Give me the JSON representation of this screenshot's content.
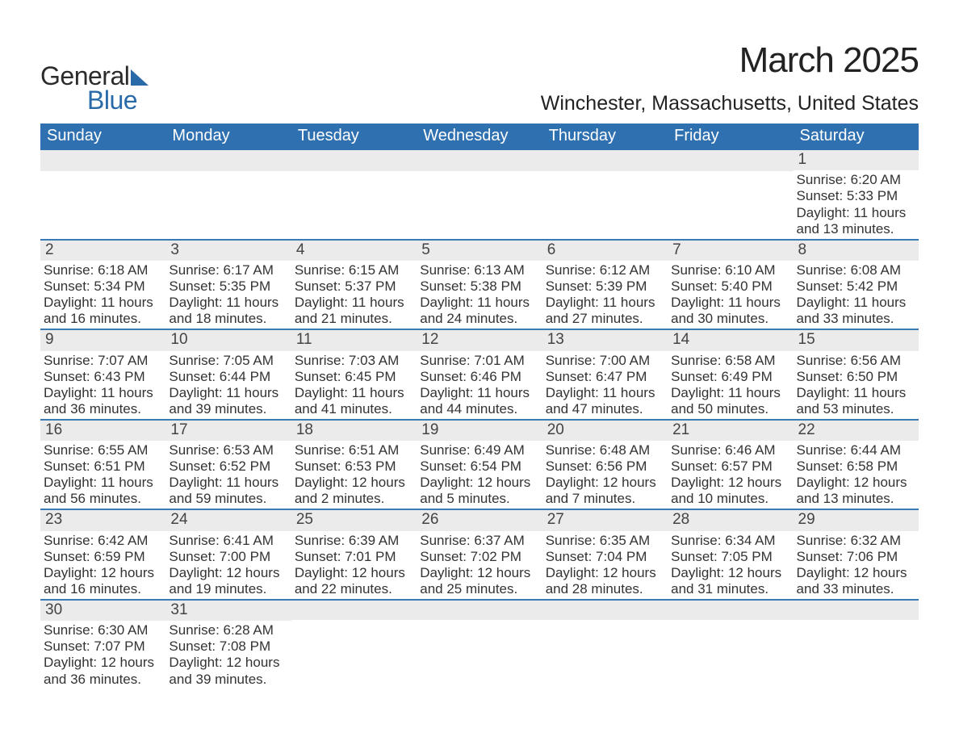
{
  "brand": {
    "line1": "General",
    "line2": "Blue",
    "accent_color": "#2a6aa8"
  },
  "title": "March 2025",
  "location": "Winchester, Massachusetts, United States",
  "colors": {
    "header_bg": "#2f70b0",
    "header_text": "#ffffff",
    "row_divider": "#3a7ab5",
    "daynum_bg": "#ebebeb",
    "body_text": "#333333",
    "page_bg": "#ffffff"
  },
  "typography": {
    "title_fontsize": 44,
    "location_fontsize": 25,
    "weekday_fontsize": 20,
    "daynum_fontsize": 19,
    "body_fontsize": 17
  },
  "weekdays": [
    "Sunday",
    "Monday",
    "Tuesday",
    "Wednesday",
    "Thursday",
    "Friday",
    "Saturday"
  ],
  "layout": {
    "columns": 7,
    "rows": 6,
    "leading_blanks": 6,
    "trailing_blanks": 5
  },
  "labels": {
    "sunrise": "Sunrise:",
    "sunset": "Sunset:",
    "daylight": "Daylight:"
  },
  "days": [
    {
      "n": 1,
      "sunrise": "6:20 AM",
      "sunset": "5:33 PM",
      "daylight": "11 hours and 13 minutes."
    },
    {
      "n": 2,
      "sunrise": "6:18 AM",
      "sunset": "5:34 PM",
      "daylight": "11 hours and 16 minutes."
    },
    {
      "n": 3,
      "sunrise": "6:17 AM",
      "sunset": "5:35 PM",
      "daylight": "11 hours and 18 minutes."
    },
    {
      "n": 4,
      "sunrise": "6:15 AM",
      "sunset": "5:37 PM",
      "daylight": "11 hours and 21 minutes."
    },
    {
      "n": 5,
      "sunrise": "6:13 AM",
      "sunset": "5:38 PM",
      "daylight": "11 hours and 24 minutes."
    },
    {
      "n": 6,
      "sunrise": "6:12 AM",
      "sunset": "5:39 PM",
      "daylight": "11 hours and 27 minutes."
    },
    {
      "n": 7,
      "sunrise": "6:10 AM",
      "sunset": "5:40 PM",
      "daylight": "11 hours and 30 minutes."
    },
    {
      "n": 8,
      "sunrise": "6:08 AM",
      "sunset": "5:42 PM",
      "daylight": "11 hours and 33 minutes."
    },
    {
      "n": 9,
      "sunrise": "7:07 AM",
      "sunset": "6:43 PM",
      "daylight": "11 hours and 36 minutes."
    },
    {
      "n": 10,
      "sunrise": "7:05 AM",
      "sunset": "6:44 PM",
      "daylight": "11 hours and 39 minutes."
    },
    {
      "n": 11,
      "sunrise": "7:03 AM",
      "sunset": "6:45 PM",
      "daylight": "11 hours and 41 minutes."
    },
    {
      "n": 12,
      "sunrise": "7:01 AM",
      "sunset": "6:46 PM",
      "daylight": "11 hours and 44 minutes."
    },
    {
      "n": 13,
      "sunrise": "7:00 AM",
      "sunset": "6:47 PM",
      "daylight": "11 hours and 47 minutes."
    },
    {
      "n": 14,
      "sunrise": "6:58 AM",
      "sunset": "6:49 PM",
      "daylight": "11 hours and 50 minutes."
    },
    {
      "n": 15,
      "sunrise": "6:56 AM",
      "sunset": "6:50 PM",
      "daylight": "11 hours and 53 minutes."
    },
    {
      "n": 16,
      "sunrise": "6:55 AM",
      "sunset": "6:51 PM",
      "daylight": "11 hours and 56 minutes."
    },
    {
      "n": 17,
      "sunrise": "6:53 AM",
      "sunset": "6:52 PM",
      "daylight": "11 hours and 59 minutes."
    },
    {
      "n": 18,
      "sunrise": "6:51 AM",
      "sunset": "6:53 PM",
      "daylight": "12 hours and 2 minutes."
    },
    {
      "n": 19,
      "sunrise": "6:49 AM",
      "sunset": "6:54 PM",
      "daylight": "12 hours and 5 minutes."
    },
    {
      "n": 20,
      "sunrise": "6:48 AM",
      "sunset": "6:56 PM",
      "daylight": "12 hours and 7 minutes."
    },
    {
      "n": 21,
      "sunrise": "6:46 AM",
      "sunset": "6:57 PM",
      "daylight": "12 hours and 10 minutes."
    },
    {
      "n": 22,
      "sunrise": "6:44 AM",
      "sunset": "6:58 PM",
      "daylight": "12 hours and 13 minutes."
    },
    {
      "n": 23,
      "sunrise": "6:42 AM",
      "sunset": "6:59 PM",
      "daylight": "12 hours and 16 minutes."
    },
    {
      "n": 24,
      "sunrise": "6:41 AM",
      "sunset": "7:00 PM",
      "daylight": "12 hours and 19 minutes."
    },
    {
      "n": 25,
      "sunrise": "6:39 AM",
      "sunset": "7:01 PM",
      "daylight": "12 hours and 22 minutes."
    },
    {
      "n": 26,
      "sunrise": "6:37 AM",
      "sunset": "7:02 PM",
      "daylight": "12 hours and 25 minutes."
    },
    {
      "n": 27,
      "sunrise": "6:35 AM",
      "sunset": "7:04 PM",
      "daylight": "12 hours and 28 minutes."
    },
    {
      "n": 28,
      "sunrise": "6:34 AM",
      "sunset": "7:05 PM",
      "daylight": "12 hours and 31 minutes."
    },
    {
      "n": 29,
      "sunrise": "6:32 AM",
      "sunset": "7:06 PM",
      "daylight": "12 hours and 33 minutes."
    },
    {
      "n": 30,
      "sunrise": "6:30 AM",
      "sunset": "7:07 PM",
      "daylight": "12 hours and 36 minutes."
    },
    {
      "n": 31,
      "sunrise": "6:28 AM",
      "sunset": "7:08 PM",
      "daylight": "12 hours and 39 minutes."
    }
  ]
}
